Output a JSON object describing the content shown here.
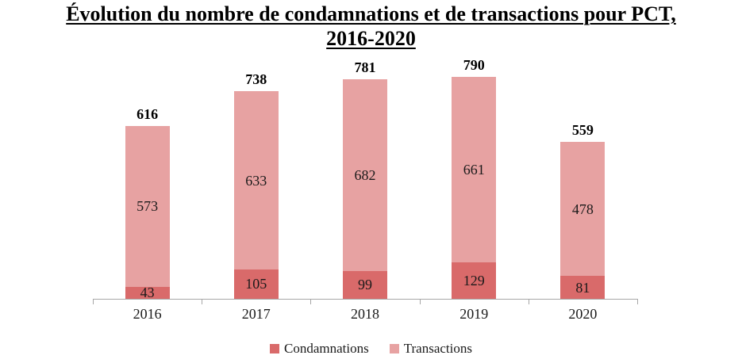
{
  "header": {
    "title_line1": "Évolution du nombre de condamnations et de transactions pour PCT,",
    "title_line2": "2016-2020"
  },
  "chart_data": {
    "type": "bar",
    "stacked": true,
    "title": "Évolution du nombre de condamnations et de transactions pour PCT, 2016-2020",
    "categories": [
      "2016",
      "2017",
      "2018",
      "2019",
      "2020"
    ],
    "series": [
      {
        "name": "Condamnations",
        "color": "#d96a6a",
        "values": [
          43,
          105,
          99,
          129,
          81
        ]
      },
      {
        "name": "Transactions",
        "color": "#e7a2a2",
        "values": [
          573,
          633,
          682,
          661,
          478
        ]
      }
    ],
    "totals": [
      616,
      738,
      781,
      790,
      559
    ],
    "xlabel": "",
    "ylabel": "",
    "ylim": [
      0,
      790
    ],
    "grid": false,
    "legend_position": "bottom",
    "axis_color": "#a6a6a6"
  }
}
